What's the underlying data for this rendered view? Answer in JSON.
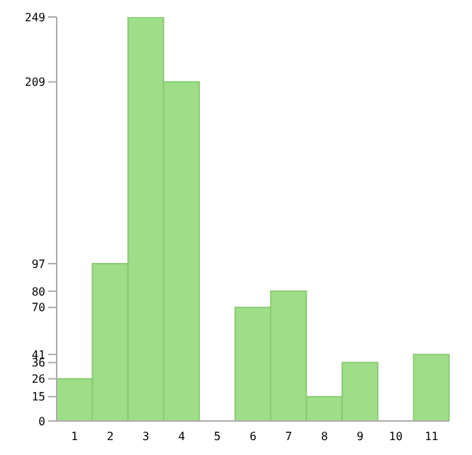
{
  "chart_data": {
    "type": "bar",
    "categories": [
      "1",
      "2",
      "3",
      "4",
      "5",
      "6",
      "7",
      "8",
      "9",
      "10",
      "11"
    ],
    "values": [
      26,
      97,
      249,
      209,
      0,
      70,
      80,
      15,
      36,
      0,
      41
    ],
    "color": "#9fde89",
    "ylim": [
      0,
      249
    ],
    "yticks": [
      0,
      15,
      26,
      36,
      41,
      70,
      80,
      97,
      209,
      249
    ]
  }
}
